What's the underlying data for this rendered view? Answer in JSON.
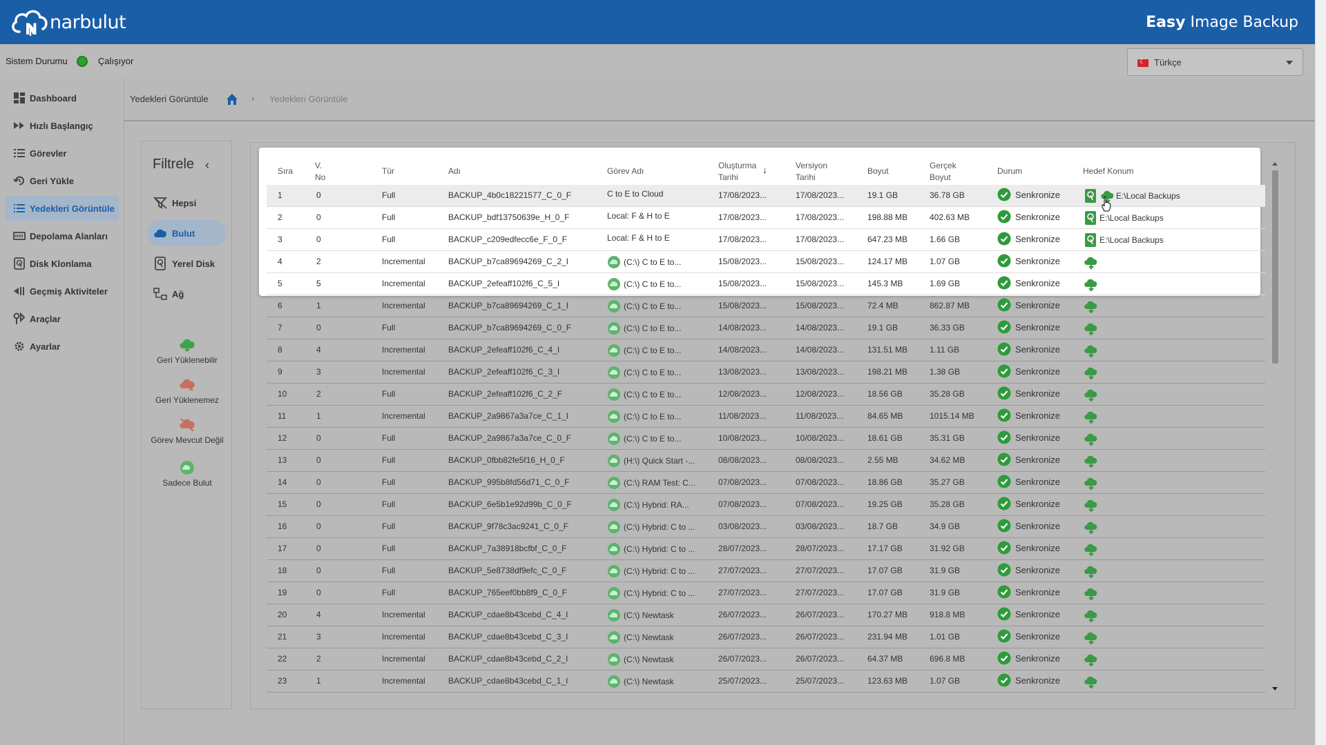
{
  "header": {
    "brand": "narbulut",
    "product_bold": "Easy",
    "product_rest": " Image Backup"
  },
  "status": {
    "label": "Sistem Durumu",
    "state": "Çalışıyor",
    "state_color": "#2da02d"
  },
  "language": {
    "selected": "Türkçe"
  },
  "sidebar": {
    "items": [
      {
        "label": "Dashboard",
        "icon": "dashboard-icon"
      },
      {
        "label": "Hızlı Başlangıç",
        "icon": "fast-forward-icon"
      },
      {
        "label": "Görevler",
        "icon": "list-icon"
      },
      {
        "label": "Geri Yükle",
        "icon": "restore-icon"
      },
      {
        "label": "Yedekleri Görüntüle",
        "icon": "list-view-icon",
        "active": true
      },
      {
        "label": "Depolama Alanları",
        "icon": "storage-icon"
      },
      {
        "label": "Disk Klonlama",
        "icon": "disk-icon"
      },
      {
        "label": "Geçmiş Aktiviteler",
        "icon": "history-icon"
      },
      {
        "label": "Araçlar",
        "icon": "tools-icon"
      },
      {
        "label": "Ayarlar",
        "icon": "gear-icon"
      }
    ]
  },
  "breadcrumb": {
    "title": "Yedekleri Görüntüle",
    "current": "Yedekleri Görüntüle"
  },
  "filter": {
    "title": "Filtrele",
    "items": [
      {
        "label": "Hepsi",
        "icon": "filter-off-icon"
      },
      {
        "label": "Bulut",
        "icon": "cloud-icon",
        "active": true
      },
      {
        "label": "Yerel Disk",
        "icon": "local-disk-icon"
      },
      {
        "label": "Ağ",
        "icon": "network-icon"
      }
    ],
    "legend": [
      {
        "label": "Geri Yüklenebilir",
        "icon": "cloud-download-icon"
      },
      {
        "label": "Geri Yüklenemez",
        "icon": "cloud-error-icon"
      },
      {
        "label": "Görev Mevcut Değil",
        "icon": "cloud-missing-icon"
      },
      {
        "label": "Sadece Bulut",
        "icon": "cloud-only-icon"
      }
    ]
  },
  "table": {
    "headers": {
      "sira": "Sıra",
      "vno1": "V.",
      "vno2": "No",
      "tur": "Tür",
      "adi": "Adı",
      "gorev": "Görev Adı",
      "olus1": "Oluşturma",
      "olus2": "Tarihi",
      "vers1": "Versiyon",
      "vers2": "Tarihi",
      "boyut": "Boyut",
      "gercek1": "Gerçek",
      "gercek2": "Boyut",
      "durum": "Durum",
      "hedef": "Hedef Konum"
    },
    "rows": [
      [
        "1",
        "0",
        "Full",
        "BACKUP_4b0c18221577_C_0_F",
        "C to E to Cloud",
        "17/08/2023...",
        "17/08/2023...",
        "19.1 GB",
        "36.78 GB",
        "Senkronize",
        "E:\\Local Backups",
        "both"
      ],
      [
        "2",
        "0",
        "Full",
        "BACKUP_bdf13750639e_H_0_F",
        "Local: F & H to E",
        "17/08/2023...",
        "17/08/2023...",
        "198.88 MB",
        "402.63 MB",
        "Senkronize",
        "E:\\Local Backups",
        "local"
      ],
      [
        "3",
        "0",
        "Full",
        "BACKUP_c209edfecc6e_F_0_F",
        "Local: F & H to E",
        "17/08/2023...",
        "17/08/2023...",
        "647.23 MB",
        "1.66 GB",
        "Senkronize",
        "E:\\Local Backups",
        "local"
      ],
      [
        "4",
        "2",
        "Incremental",
        "BACKUP_b7ca89694269_C_2_I",
        "(C:\\) C to E to...",
        "15/08/2023...",
        "15/08/2023...",
        "124.17 MB",
        "1.07 GB",
        "Senkronize",
        "",
        "cloud"
      ],
      [
        "5",
        "5",
        "Incremental",
        "BACKUP_2efeaff102f6_C_5_I",
        "(C:\\) C to E to...",
        "15/08/2023...",
        "15/08/2023...",
        "145.3 MB",
        "1.69 GB",
        "Senkronize",
        "",
        "cloud"
      ],
      [
        "6",
        "1",
        "Incremental",
        "BACKUP_b7ca89694269_C_1_I",
        "(C:\\) C to E to...",
        "15/08/2023...",
        "15/08/2023...",
        "72.4 MB",
        "862.87 MB",
        "Senkronize",
        "",
        "cloud"
      ],
      [
        "7",
        "0",
        "Full",
        "BACKUP_b7ca89694269_C_0_F",
        "(C:\\) C to E to...",
        "14/08/2023...",
        "14/08/2023...",
        "19.1 GB",
        "36.33 GB",
        "Senkronize",
        "",
        "cloud"
      ],
      [
        "8",
        "4",
        "Incremental",
        "BACKUP_2efeaff102f6_C_4_I",
        "(C:\\) C to E to...",
        "14/08/2023...",
        "14/08/2023...",
        "131.51 MB",
        "1.11 GB",
        "Senkronize",
        "",
        "cloud"
      ],
      [
        "9",
        "3",
        "Incremental",
        "BACKUP_2efeaff102f6_C_3_I",
        "(C:\\) C to E to...",
        "13/08/2023...",
        "13/08/2023...",
        "198.21 MB",
        "1.38 GB",
        "Senkronize",
        "",
        "cloud"
      ],
      [
        "10",
        "2",
        "Full",
        "BACKUP_2efeaff102f6_C_2_F",
        "(C:\\) C to E to...",
        "12/08/2023...",
        "12/08/2023...",
        "18.56 GB",
        "35.28 GB",
        "Senkronize",
        "",
        "cloud"
      ],
      [
        "11",
        "1",
        "Incremental",
        "BACKUP_2a9867a3a7ce_C_1_I",
        "(C:\\) C to E to...",
        "11/08/2023...",
        "11/08/2023...",
        "84.65 MB",
        "1015.14 MB",
        "Senkronize",
        "",
        "cloud"
      ],
      [
        "12",
        "0",
        "Full",
        "BACKUP_2a9867a3a7ce_C_0_F",
        "(C:\\) C to E to...",
        "10/08/2023...",
        "10/08/2023...",
        "18.61 GB",
        "35.31 GB",
        "Senkronize",
        "",
        "cloud"
      ],
      [
        "13",
        "0",
        "Full",
        "BACKUP_0fbb82fe5f16_H_0_F",
        "(H:\\) Quick Start -...",
        "08/08/2023...",
        "08/08/2023...",
        "2.55 MB",
        "34.62 MB",
        "Senkronize",
        "",
        "cloud"
      ],
      [
        "14",
        "0",
        "Full",
        "BACKUP_995b8fd56d71_C_0_F",
        "(C:\\) RAM Test: C...",
        "07/08/2023...",
        "07/08/2023...",
        "18.86 GB",
        "35.27 GB",
        "Senkronize",
        "",
        "cloud"
      ],
      [
        "15",
        "0",
        "Full",
        "BACKUP_6e5b1e92d99b_C_0_F",
        "(C:\\) Hybrid: RA...",
        "07/08/2023...",
        "07/08/2023...",
        "19.25 GB",
        "35.28 GB",
        "Senkronize",
        "",
        "cloud"
      ],
      [
        "16",
        "0",
        "Full",
        "BACKUP_9f78c3ac9241_C_0_F",
        "(C:\\) Hybrid: C to ...",
        "03/08/2023...",
        "03/08/2023...",
        "18.7 GB",
        "34.9 GB",
        "Senkronize",
        "",
        "cloud"
      ],
      [
        "17",
        "0",
        "Full",
        "BACKUP_7a38918bcfbf_C_0_F",
        "(C:\\) Hybrid: C to ...",
        "28/07/2023...",
        "28/07/2023...",
        "17.17 GB",
        "31.92 GB",
        "Senkronize",
        "",
        "cloud"
      ],
      [
        "18",
        "0",
        "Full",
        "BACKUP_5e8738df9efc_C_0_F",
        "(C:\\) Hybrid: C to ...",
        "27/07/2023...",
        "27/07/2023...",
        "17.07 GB",
        "31.9 GB",
        "Senkronize",
        "",
        "cloud"
      ],
      [
        "19",
        "0",
        "Full",
        "BACKUP_765eef0bb8f9_C_0_F",
        "(C:\\) Hybrid: C to ...",
        "27/07/2023...",
        "27/07/2023...",
        "17.07 GB",
        "31.9 GB",
        "Senkronize",
        "",
        "cloud"
      ],
      [
        "20",
        "4",
        "Incremental",
        "BACKUP_cdae8b43cebd_C_4_I",
        "(C:\\) Newtask",
        "26/07/2023...",
        "26/07/2023...",
        "170.27 MB",
        "918.8 MB",
        "Senkronize",
        "",
        "cloud"
      ],
      [
        "21",
        "3",
        "Incremental",
        "BACKUP_cdae8b43cebd_C_3_I",
        "(C:\\) Newtask",
        "26/07/2023...",
        "26/07/2023...",
        "231.94 MB",
        "1.01 GB",
        "Senkronize",
        "",
        "cloud"
      ],
      [
        "22",
        "2",
        "Incremental",
        "BACKUP_cdae8b43cebd_C_2_I",
        "(C:\\) Newtask",
        "26/07/2023...",
        "26/07/2023...",
        "64.37 MB",
        "696.8 MB",
        "Senkronize",
        "",
        "cloud"
      ],
      [
        "23",
        "1",
        "Incremental",
        "BACKUP_cdae8b43cebd_C_1_I",
        "(C:\\) Newtask",
        "25/07/2023...",
        "25/07/2023...",
        "123.63 MB",
        "1.07 GB",
        "Senkronize",
        "",
        "cloud"
      ]
    ]
  },
  "colors": {
    "brand": "#1a5ea8",
    "success": "#2e9b3a",
    "cloud_green": "#3fa34d",
    "highlight": "#ffffff"
  }
}
